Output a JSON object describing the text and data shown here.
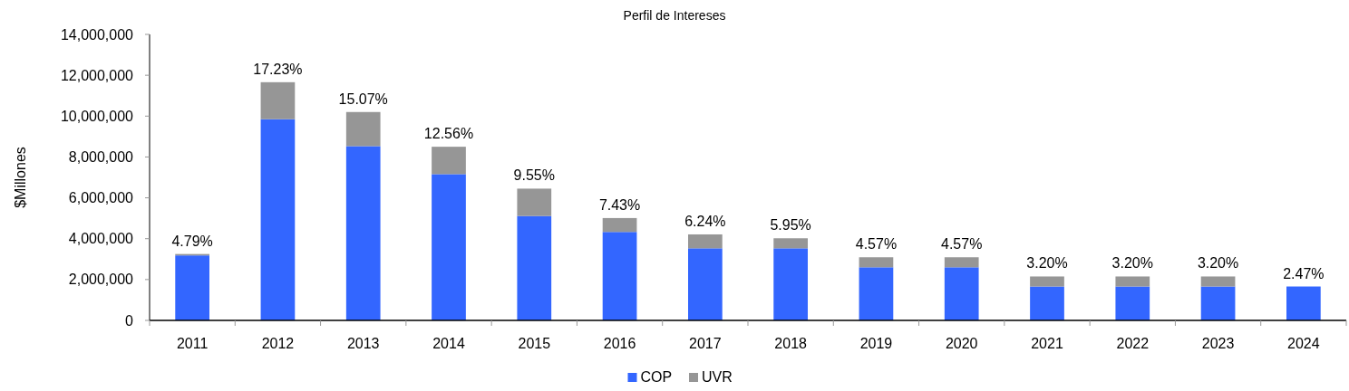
{
  "chart_data": {
    "type": "bar",
    "title": "Perfil de Intereses",
    "ylabel": "$Millones",
    "categories": [
      "2011",
      "2012",
      "2013",
      "2014",
      "2015",
      "2016",
      "2017",
      "2018",
      "2019",
      "2020",
      "2021",
      "2022",
      "2023",
      "2024"
    ],
    "series": [
      {
        "name": "COP",
        "color": "#3366ff",
        "values": [
          3180000,
          9850000,
          8530000,
          7160000,
          5110000,
          4330000,
          3530000,
          3530000,
          2600000,
          2600000,
          1660000,
          1660000,
          1660000,
          1660000
        ]
      },
      {
        "name": "UVR",
        "color": "#969696",
        "values": [
          70000,
          1810000,
          1670000,
          1340000,
          1340000,
          680000,
          680000,
          490000,
          490000,
          490000,
          490000,
          490000,
          490000,
          null
        ]
      }
    ],
    "stacked": true,
    "ylim": [
      0,
      14000000
    ],
    "yticks": [
      0,
      {
        "value": 2000000,
        "label": "2,000,000"
      },
      {
        "value": 4000000,
        "label": "4,000,000"
      },
      {
        "value": 6000000,
        "label": "6,000,000"
      },
      {
        "value": 8000000,
        "label": "8,000,000"
      },
      {
        "value": 10000000,
        "label": "10,000,000"
      },
      {
        "value": 12000000,
        "label": "12,000,000"
      },
      {
        "value": 14000000,
        "label": "14,000,000"
      }
    ],
    "legend": "bottom",
    "annotations": [
      {
        "text": "4.79%",
        "x": "2011",
        "y": 3250000
      },
      {
        "text": "17.23%",
        "x": "2012",
        "y": 11660000
      },
      {
        "text": "15.07%",
        "x": "2013",
        "y": 10200000
      },
      {
        "text": "12.56%",
        "x": "2014",
        "y": 8500000
      },
      {
        "text": "9.55%",
        "x": "2015",
        "y": 6450000
      },
      {
        "text": "7.43%",
        "x": "2016",
        "y": 5010000
      },
      {
        "text": "6.24%",
        "x": "2017",
        "y": 4210000
      },
      {
        "text": "5.95%",
        "x": "2018",
        "y": 4020000
      },
      {
        "text": "4.57%",
        "x": "2019",
        "y": 3090000
      },
      {
        "text": "4.57%",
        "x": "2020",
        "y": 3090000
      },
      {
        "text": "3.20%",
        "x": "2021",
        "y": 2150000
      },
      {
        "text": "3.20%",
        "x": "2022",
        "y": 2150000
      },
      {
        "text": "3.20%",
        "x": "2023",
        "y": 2150000
      },
      {
        "text": "2.47%",
        "x": "2024",
        "y": 1660000
      }
    ]
  }
}
